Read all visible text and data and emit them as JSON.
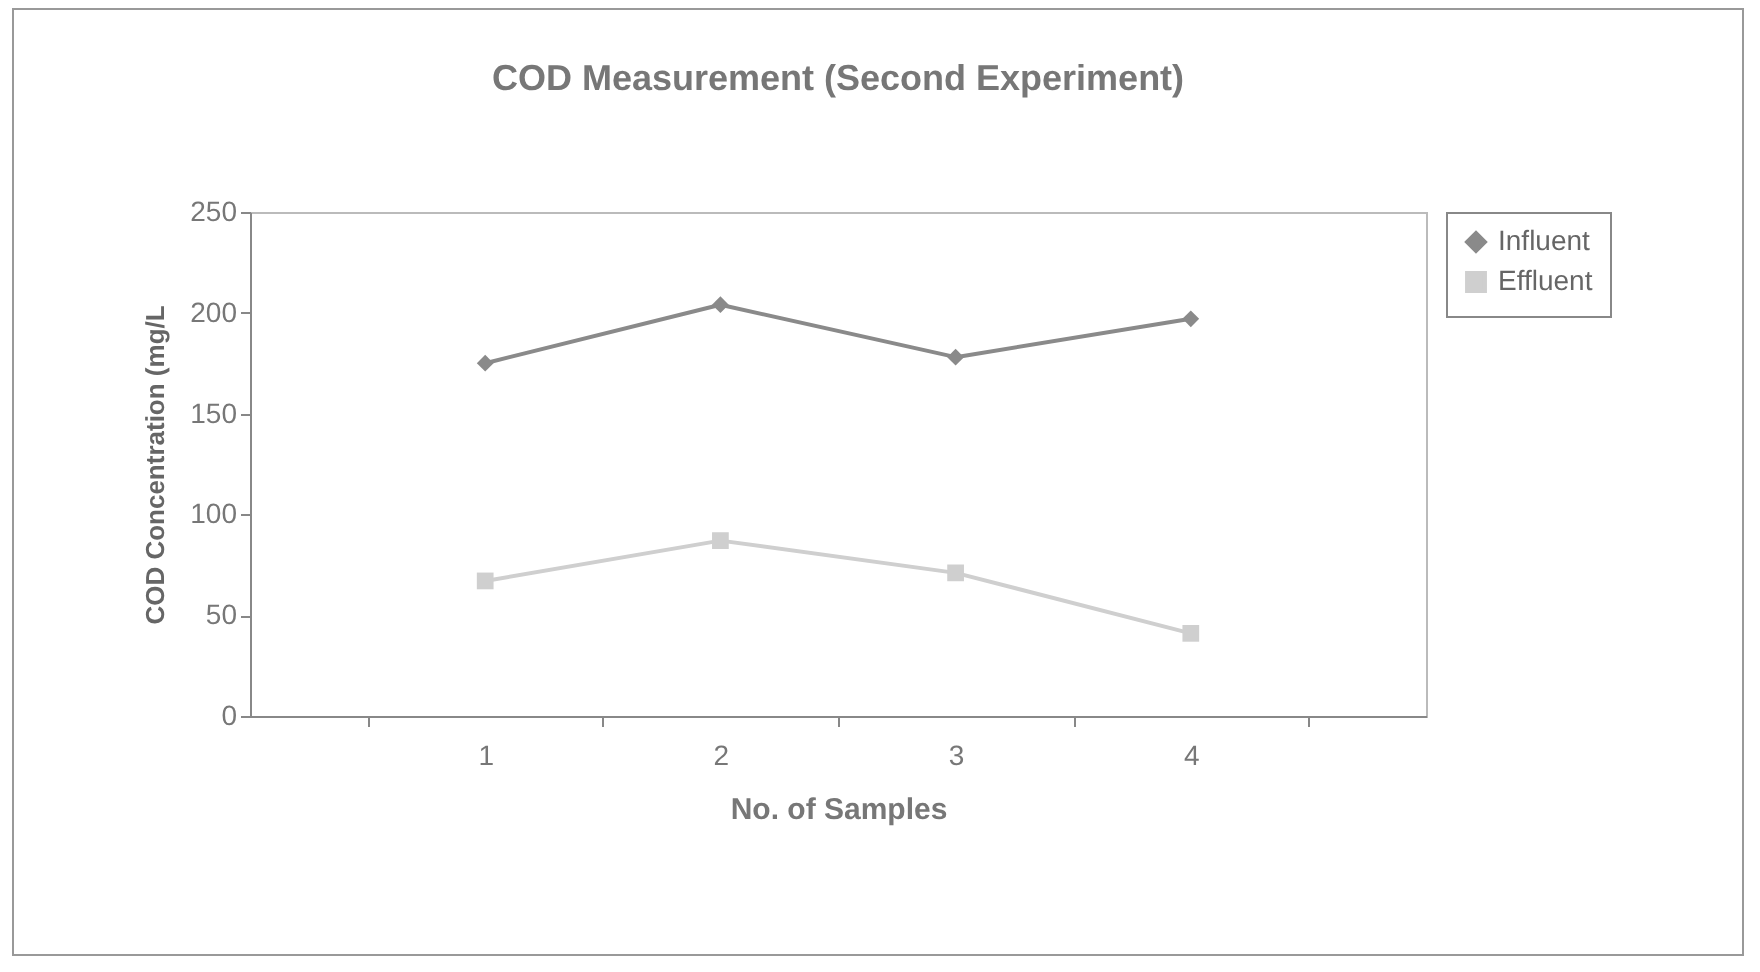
{
  "chart_data": {
    "type": "line",
    "title": "COD Measurement (Second Experiment)",
    "xlabel": "No. of Samples",
    "ylabel": "COD Concentration (mg/L",
    "categories": [
      "1",
      "2",
      "3",
      "4"
    ],
    "series": [
      {
        "name": "Influent",
        "color": "#8a8a8a",
        "marker": "diamond",
        "values": [
          175,
          204,
          178,
          197
        ]
      },
      {
        "name": "Effluent",
        "color": "#cfcfcf",
        "marker": "square",
        "values": [
          67,
          87,
          71,
          41
        ]
      }
    ],
    "ylim": [
      0,
      250
    ],
    "yticks": [
      0,
      50,
      100,
      150,
      200,
      250
    ],
    "grid": false,
    "legend": "right",
    "line_style": "solid"
  }
}
